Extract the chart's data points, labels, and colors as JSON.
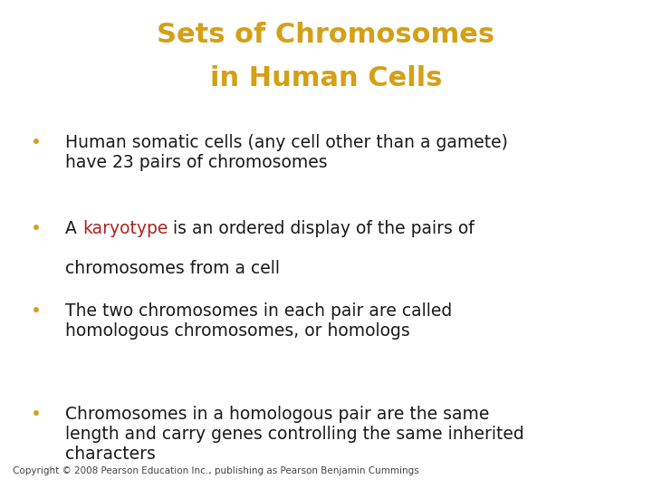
{
  "title_line1": "Sets of Chromosomes",
  "title_line2": "in Human Cells",
  "title_color": "#D4A017",
  "title_bg": "#000000",
  "body_bg": "#FFFFFF",
  "separator_color": "#3A8A9E",
  "bullet_color": "#D4A017",
  "text_color": "#1A1A1A",
  "highlight_color": "#B22222",
  "footer_text": "Copyright © 2008 Pearson Education Inc., publishing as Pearson Benjamin Cummings",
  "footer_color": "#444444",
  "footer_fontsize": 7.5,
  "title_fontsize": 22,
  "bullet_fontsize": 13.5,
  "bullet_char": "•"
}
